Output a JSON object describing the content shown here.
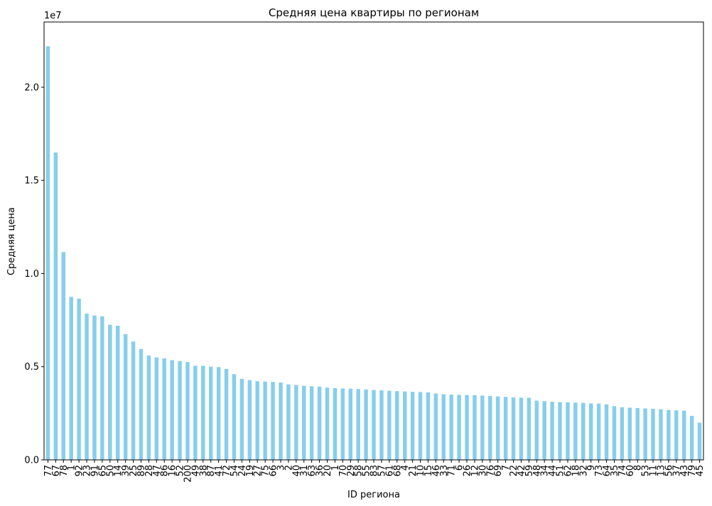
{
  "chart_data": {
    "type": "bar",
    "title": "Средняя цена квартиры по регионам",
    "xlabel": "ID региона",
    "ylabel": "Средняя цена",
    "y_multiplier_label": "1e7",
    "ylim": [
      0,
      23500000
    ],
    "yticks": [
      0,
      5000000,
      10000000,
      15000000,
      20000000
    ],
    "ytick_labels": [
      "0.0",
      "0.5",
      "1.0",
      "1.5",
      "2.0"
    ],
    "grid": false,
    "bar_color": "#87ceeb",
    "categories": [
      "77",
      "67",
      "78",
      "1",
      "92",
      "23",
      "91",
      "65",
      "50",
      "14",
      "39",
      "25",
      "89",
      "28",
      "47",
      "86",
      "16",
      "52",
      "200",
      "49",
      "38",
      "87",
      "41",
      "72",
      "54",
      "24",
      "19",
      "27",
      "75",
      "66",
      "3",
      "2",
      "40",
      "31",
      "63",
      "36",
      "20",
      "1",
      "70",
      "29",
      "58",
      "55",
      "83",
      "57",
      "61",
      "68",
      "4",
      "21",
      "10",
      "15",
      "46",
      "33",
      "71",
      "6",
      "26",
      "12",
      "30",
      "76",
      "69",
      "7",
      "22",
      "42",
      "59",
      "48",
      "34",
      "44",
      "51",
      "62",
      "18",
      "32",
      "9",
      "73",
      "64",
      "35",
      "74",
      "60",
      "8",
      "53",
      "11",
      "13",
      "56",
      "37",
      "43",
      "79",
      "45"
    ],
    "values": [
      22200000,
      16500000,
      11150000,
      8750000,
      8650000,
      7850000,
      7750000,
      7700000,
      7250000,
      7200000,
      6750000,
      6350000,
      5950000,
      5600000,
      5500000,
      5450000,
      5350000,
      5300000,
      5250000,
      5050000,
      5050000,
      5000000,
      4980000,
      4880000,
      4600000,
      4350000,
      4280000,
      4220000,
      4200000,
      4180000,
      4150000,
      4050000,
      4020000,
      3980000,
      3950000,
      3930000,
      3880000,
      3850000,
      3830000,
      3820000,
      3800000,
      3780000,
      3750000,
      3730000,
      3710000,
      3690000,
      3670000,
      3650000,
      3640000,
      3620000,
      3560000,
      3520000,
      3500000,
      3490000,
      3480000,
      3470000,
      3450000,
      3430000,
      3400000,
      3380000,
      3350000,
      3340000,
      3330000,
      3180000,
      3150000,
      3120000,
      3100000,
      3090000,
      3070000,
      3060000,
      3030000,
      3020000,
      2980000,
      2880000,
      2820000,
      2800000,
      2780000,
      2760000,
      2740000,
      2720000,
      2680000,
      2660000,
      2640000,
      2360000,
      2000000
    ]
  }
}
